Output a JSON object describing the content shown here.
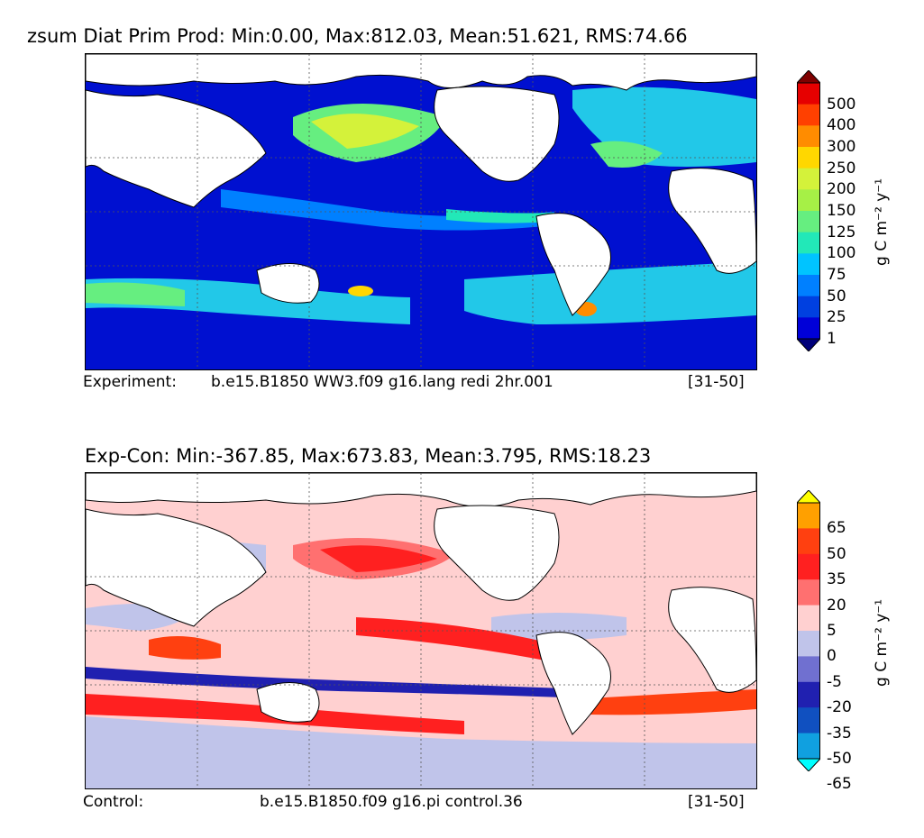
{
  "panels": {
    "top": {
      "title": "zsum Diat Prim Prod: Min:0.00, Max:812.03, Mean:51.621, RMS:74.66",
      "caption_left": "Experiment:",
      "caption_mid": "b.e15.B1850 WW3.f09 g16.lang redi 2hr.001",
      "caption_right": "[31-50]",
      "colorbar": {
        "unit": "g C m⁻² y⁻¹",
        "ticks": [
          "500",
          "400",
          "300",
          "250",
          "200",
          "150",
          "125",
          "100",
          "75",
          "50",
          "25",
          "1"
        ],
        "colors": [
          "#7f0000",
          "#e60000",
          "#ff4000",
          "#ff8c00",
          "#ffd700",
          "#d4f23a",
          "#a6f046",
          "#66ee80",
          "#22e8b8",
          "#00c4ff",
          "#0080ff",
          "#0040e0",
          "#0000d8",
          "#00007a"
        ],
        "extend": "both"
      },
      "ocean_color": "#0010d0"
    },
    "bottom": {
      "title": "Exp-Con: Min:-367.85, Max:673.83, Mean:3.795, RMS:18.23",
      "caption_left": "Control:",
      "caption_mid": "b.e15.B1850.f09 g16.pi control.36",
      "caption_right": "[31-50]",
      "colorbar": {
        "unit": "g C m⁻² y⁻¹",
        "ticks": [
          "65",
          "50",
          "35",
          "20",
          "5",
          "0",
          "-5",
          "-20",
          "-35",
          "-50",
          "-65"
        ],
        "colors": [
          "#ffff00",
          "#ffa000",
          "#ff4010",
          "#ff2020",
          "#ff7070",
          "#ffd0d0",
          "#c0c4ea",
          "#7070d0",
          "#2020b0",
          "#1050c0",
          "#10a0e0",
          "#00ffff"
        ],
        "extend": "both"
      },
      "ocean_color": "#ffd0d0"
    }
  }
}
